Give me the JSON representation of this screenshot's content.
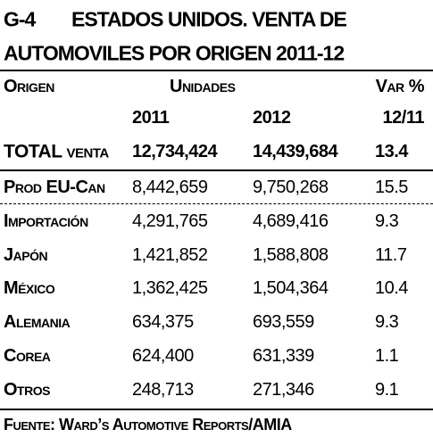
{
  "title": {
    "code": "G-4",
    "lines": [
      "ESTADOS UNIDOS. VENTA DE",
      "AUTOMOVILES POR ORIGEN 2011-12"
    ]
  },
  "table": {
    "header": [
      "Origen",
      "Unidades",
      "Var %"
    ],
    "subheader": [
      "2011",
      "2012",
      "12/11"
    ],
    "rows": [
      [
        "TOTAL venta",
        "12,734,424",
        "14,439,684",
        "13.4"
      ],
      [
        "Prod EU-Can",
        "8,442,659",
        "9,750,268",
        "15.5"
      ],
      [
        "Importación",
        "4,291,765",
        "4,689,416",
        "9.3"
      ],
      [
        "Japón",
        "1,421,852",
        "1,588,808",
        "11.7"
      ],
      [
        "México",
        "1,362,425",
        "1,504,364",
        "10.4"
      ],
      [
        "Alemania",
        "634,375",
        "693,559",
        "9.3"
      ],
      [
        "Corea",
        "624,400",
        "631,339",
        "1.1"
      ],
      [
        "Otros",
        "248,713",
        "271,346",
        "9.1"
      ]
    ]
  },
  "source": "Fuente: Ward’s Automotive Reports/AMIA"
}
